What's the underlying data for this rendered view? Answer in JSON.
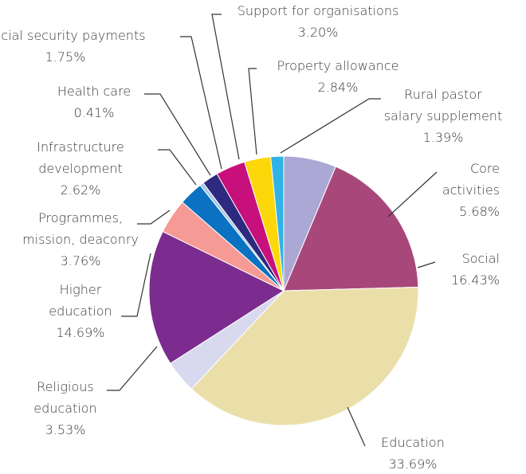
{
  "chart_data": {
    "type": "pie",
    "title": "",
    "slices": [
      {
        "label": "Core activities",
        "label_lines": [
          "Core",
          "activities"
        ],
        "value_text": "5.68%",
        "value": 5.68,
        "color": "#aba8d6"
      },
      {
        "label": "Social",
        "label_lines": [
          "Social"
        ],
        "value_text": "16.43%",
        "value": 16.43,
        "color": "#a8487a"
      },
      {
        "label": "Education",
        "label_lines": [
          "Education"
        ],
        "value_text": "33.69%",
        "value": 33.69,
        "color": "#ebdfa9"
      },
      {
        "label": "Religious education",
        "label_lines": [
          "Religious",
          "education"
        ],
        "value_text": "3.53%",
        "value": 3.53,
        "color": "#d8d8ef"
      },
      {
        "label": "Higher education",
        "label_lines": [
          "Higher",
          "education"
        ],
        "value_text": "14.69%",
        "value": 14.69,
        "color": "#7b2c8e"
      },
      {
        "label": "Programmes, mission, deaconry",
        "label_lines": [
          "Programmes,",
          "mission, deaconry"
        ],
        "value_text": "3.76%",
        "value": 3.76,
        "color": "#f59a95"
      },
      {
        "label": "Infrastructure development",
        "label_lines": [
          "Infrastructure",
          "development"
        ],
        "value_text": "2.62%",
        "value": 2.62,
        "color": "#0a72c0"
      },
      {
        "label": "Health care",
        "label_lines": [
          "Health care"
        ],
        "value_text": "0.41%",
        "value": 0.41,
        "color": "#a6c6e6"
      },
      {
        "label": "Social security payments",
        "label_lines": [
          "Social security payments"
        ],
        "value_text": "1.75%",
        "value": 1.75,
        "color": "#2e2a7f"
      },
      {
        "label": "Support for organisations",
        "label_lines": [
          "Support for organisations"
        ],
        "value_text": "3.20%",
        "value": 3.2,
        "color": "#c8107c"
      },
      {
        "label": "Property allowance",
        "label_lines": [
          "Property allowance"
        ],
        "value_text": "2.84%",
        "value": 2.84,
        "color": "#fcd80a"
      },
      {
        "label": "Rural pastor salary supplement",
        "label_lines": [
          "Rural pastor",
          "salary supplement"
        ],
        "value_text": "1.39%",
        "value": 1.39,
        "color": "#31b3e8"
      }
    ]
  }
}
